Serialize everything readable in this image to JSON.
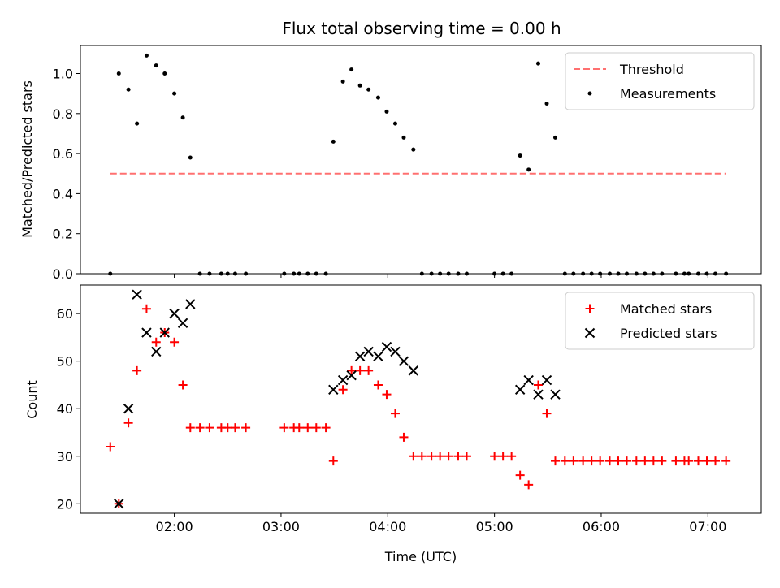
{
  "chart_data": [
    {
      "type": "scatter",
      "title": "Flux total observing time = 0.00 h",
      "ylabel": "Matched/Predicted stars",
      "xlabel": "",
      "x_unit": "hours UTC",
      "xlim": [
        1.12,
        7.5
      ],
      "ylim": [
        0,
        1.14
      ],
      "xticks": [
        2,
        3,
        4,
        5,
        6,
        7
      ],
      "xtick_labels": [
        "02:00",
        "03:00",
        "04:00",
        "05:00",
        "06:00",
        "07:00"
      ],
      "yticks": [
        0,
        0.2,
        0.4,
        0.6,
        0.8,
        1.0
      ],
      "ytick_labels": [
        "0.0",
        "0.2",
        "0.4",
        "0.6",
        "0.8",
        "1.0"
      ],
      "legend_position": "top-right",
      "threshold": {
        "name": "Threshold",
        "x": [
          1.4,
          7.17
        ],
        "y": 0.5,
        "color": "#ff7070",
        "style": "dashed"
      },
      "series": [
        {
          "name": "Measurements",
          "marker": "dot",
          "color": "#000000",
          "points": [
            [
              1.4,
              0.0
            ],
            [
              1.48,
              1.0
            ],
            [
              1.57,
              0.92
            ],
            [
              1.65,
              0.75
            ],
            [
              1.74,
              1.09
            ],
            [
              1.83,
              1.04
            ],
            [
              1.91,
              1.0
            ],
            [
              2.0,
              0.9
            ],
            [
              2.08,
              0.78
            ],
            [
              2.15,
              0.58
            ],
            [
              2.24,
              0.0
            ],
            [
              2.33,
              0.0
            ],
            [
              2.44,
              0.0
            ],
            [
              2.5,
              0.0
            ],
            [
              2.57,
              0.0
            ],
            [
              2.67,
              0.0
            ],
            [
              3.03,
              0.0
            ],
            [
              3.12,
              0.0
            ],
            [
              3.17,
              0.0
            ],
            [
              3.25,
              0.0
            ],
            [
              3.33,
              0.0
            ],
            [
              3.42,
              0.0
            ],
            [
              3.49,
              0.66
            ],
            [
              3.58,
              0.96
            ],
            [
              3.66,
              1.02
            ],
            [
              3.74,
              0.94
            ],
            [
              3.82,
              0.92
            ],
            [
              3.91,
              0.88
            ],
            [
              3.99,
              0.81
            ],
            [
              4.07,
              0.75
            ],
            [
              4.15,
              0.68
            ],
            [
              4.24,
              0.62
            ],
            [
              4.32,
              0.0
            ],
            [
              4.41,
              0.0
            ],
            [
              4.49,
              0.0
            ],
            [
              4.57,
              0.0
            ],
            [
              4.66,
              0.0
            ],
            [
              4.74,
              0.0
            ],
            [
              5.0,
              0.0
            ],
            [
              5.08,
              0.0
            ],
            [
              5.16,
              0.0
            ],
            [
              5.24,
              0.59
            ],
            [
              5.32,
              0.52
            ],
            [
              5.41,
              1.05
            ],
            [
              5.49,
              0.85
            ],
            [
              5.57,
              0.68
            ],
            [
              5.66,
              0.0
            ],
            [
              5.74,
              0.0
            ],
            [
              5.83,
              0.0
            ],
            [
              5.91,
              0.0
            ],
            [
              5.99,
              0.0
            ],
            [
              6.08,
              0.0
            ],
            [
              6.16,
              0.0
            ],
            [
              6.24,
              0.0
            ],
            [
              6.33,
              0.0
            ],
            [
              6.41,
              0.0
            ],
            [
              6.49,
              0.0
            ],
            [
              6.57,
              0.0
            ],
            [
              6.7,
              0.0
            ],
            [
              6.78,
              0.0
            ],
            [
              6.82,
              0.0
            ],
            [
              6.91,
              0.0
            ],
            [
              6.99,
              0.0
            ],
            [
              7.07,
              0.0
            ],
            [
              7.17,
              0.0
            ]
          ]
        }
      ]
    },
    {
      "type": "scatter",
      "title": "",
      "ylabel": "Count",
      "xlabel": "Time (UTC)",
      "x_unit": "hours UTC",
      "xlim": [
        1.12,
        7.5
      ],
      "ylim": [
        18,
        66
      ],
      "xticks": [
        2,
        3,
        4,
        5,
        6,
        7
      ],
      "xtick_labels": [
        "02:00",
        "03:00",
        "04:00",
        "05:00",
        "06:00",
        "07:00"
      ],
      "yticks": [
        20,
        30,
        40,
        50,
        60
      ],
      "ytick_labels": [
        "20",
        "30",
        "40",
        "50",
        "60"
      ],
      "legend_position": "top-right",
      "series": [
        {
          "name": "Matched stars",
          "marker": "plus",
          "color": "#ff0000",
          "points": [
            [
              1.4,
              32
            ],
            [
              1.48,
              20
            ],
            [
              1.57,
              37
            ],
            [
              1.65,
              48
            ],
            [
              1.74,
              61
            ],
            [
              1.83,
              54
            ],
            [
              1.91,
              56
            ],
            [
              2.0,
              54
            ],
            [
              2.08,
              45
            ],
            [
              2.15,
              36
            ],
            [
              2.24,
              36
            ],
            [
              2.33,
              36
            ],
            [
              2.44,
              36
            ],
            [
              2.5,
              36
            ],
            [
              2.57,
              36
            ],
            [
              2.67,
              36
            ],
            [
              3.03,
              36
            ],
            [
              3.12,
              36
            ],
            [
              3.17,
              36
            ],
            [
              3.25,
              36
            ],
            [
              3.33,
              36
            ],
            [
              3.42,
              36
            ],
            [
              3.49,
              29
            ],
            [
              3.58,
              44
            ],
            [
              3.66,
              48
            ],
            [
              3.74,
              48
            ],
            [
              3.82,
              48
            ],
            [
              3.91,
              45
            ],
            [
              3.99,
              43
            ],
            [
              4.07,
              39
            ],
            [
              4.15,
              34
            ],
            [
              4.24,
              30
            ],
            [
              4.32,
              30
            ],
            [
              4.41,
              30
            ],
            [
              4.49,
              30
            ],
            [
              4.57,
              30
            ],
            [
              4.66,
              30
            ],
            [
              4.74,
              30
            ],
            [
              5.0,
              30
            ],
            [
              5.08,
              30
            ],
            [
              5.16,
              30
            ],
            [
              5.24,
              26
            ],
            [
              5.32,
              24
            ],
            [
              5.41,
              45
            ],
            [
              5.49,
              39
            ],
            [
              5.57,
              29
            ],
            [
              5.66,
              29
            ],
            [
              5.74,
              29
            ],
            [
              5.83,
              29
            ],
            [
              5.91,
              29
            ],
            [
              5.99,
              29
            ],
            [
              6.08,
              29
            ],
            [
              6.16,
              29
            ],
            [
              6.24,
              29
            ],
            [
              6.33,
              29
            ],
            [
              6.41,
              29
            ],
            [
              6.49,
              29
            ],
            [
              6.57,
              29
            ],
            [
              6.7,
              29
            ],
            [
              6.78,
              29
            ],
            [
              6.82,
              29
            ],
            [
              6.91,
              29
            ],
            [
              6.99,
              29
            ],
            [
              7.07,
              29
            ],
            [
              7.17,
              29
            ]
          ]
        },
        {
          "name": "Predicted stars",
          "marker": "x",
          "color": "#000000",
          "points": [
            [
              1.48,
              20
            ],
            [
              1.57,
              40
            ],
            [
              1.65,
              64
            ],
            [
              1.74,
              56
            ],
            [
              1.83,
              52
            ],
            [
              1.91,
              56
            ],
            [
              2.0,
              60
            ],
            [
              2.08,
              58
            ],
            [
              2.15,
              62
            ],
            [
              3.49,
              44
            ],
            [
              3.58,
              46
            ],
            [
              3.66,
              47
            ],
            [
              3.74,
              51
            ],
            [
              3.82,
              52
            ],
            [
              3.91,
              51
            ],
            [
              3.99,
              53
            ],
            [
              4.07,
              52
            ],
            [
              4.15,
              50
            ],
            [
              4.24,
              48
            ],
            [
              5.24,
              44
            ],
            [
              5.32,
              46
            ],
            [
              5.41,
              43
            ],
            [
              5.49,
              46
            ],
            [
              5.57,
              43
            ]
          ]
        }
      ]
    }
  ]
}
